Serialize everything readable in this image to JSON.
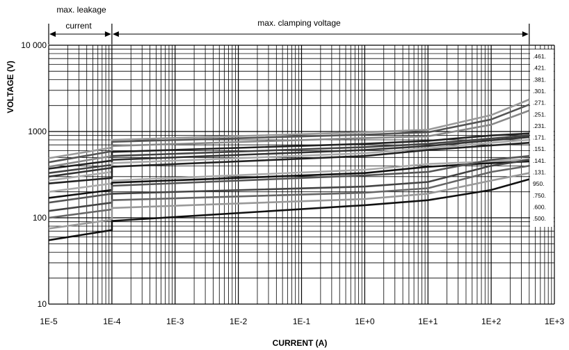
{
  "chart_data": {
    "type": "line",
    "title": "",
    "xlabel": "CURRENT (A)",
    "ylabel": "VOLTAGE (V)",
    "x_scale": "log",
    "y_scale": "log",
    "xlim": [
      1e-05,
      1000
    ],
    "ylim": [
      10,
      10000
    ],
    "grid": true,
    "x_tick_labels": [
      "1E-5",
      "1E-4",
      "1E-3",
      "1E-2",
      "1E-1",
      "1E+0",
      "1E+1",
      "1E+2",
      "1E+3"
    ],
    "y_tick_labels": [
      "10",
      "100",
      "1000",
      "10 000"
    ],
    "annotations": {
      "leakage_line1": "max. leakage",
      "leakage_line2": "current",
      "clamping": "max. clamping voltage"
    },
    "legend_position": "right",
    "legend_labels": [
      ".461.",
      ".421.",
      ".381.",
      ".301.",
      ".271.",
      ".251.",
      ".231.",
      ".171.",
      ".151.",
      ".141.",
      ".131.",
      "950.",
      ".750.",
      ".600.",
      ".500."
    ],
    "series": [
      {
        "color": "#999999",
        "points": [
          [
            1e-05,
            490
          ],
          [
            0.0001,
            650
          ],
          [
            0.0001,
            800
          ],
          [
            1,
            980
          ],
          [
            10,
            1050
          ],
          [
            100,
            1550
          ],
          [
            400,
            2350
          ]
        ]
      },
      {
        "color": "#555555",
        "points": [
          [
            1e-05,
            440
          ],
          [
            0.0001,
            590
          ],
          [
            0.0001,
            760
          ],
          [
            1,
            920
          ],
          [
            10,
            980
          ],
          [
            100,
            1380
          ],
          [
            400,
            2050
          ]
        ]
      },
      {
        "color": "#888888",
        "points": [
          [
            1e-05,
            390
          ],
          [
            0.0001,
            520
          ],
          [
            0.0001,
            680
          ],
          [
            1,
            840
          ],
          [
            10,
            880
          ],
          [
            100,
            1200
          ],
          [
            400,
            1750
          ]
        ]
      },
      {
        "color": "#222222",
        "points": [
          [
            1e-05,
            370
          ],
          [
            0.0001,
            460
          ],
          [
            0.0001,
            580
          ],
          [
            1,
            720
          ],
          [
            10,
            780
          ],
          [
            100,
            900
          ],
          [
            400,
            950
          ]
        ]
      },
      {
        "color": "#444444",
        "points": [
          [
            1e-05,
            330
          ],
          [
            0.0001,
            410
          ],
          [
            0.0001,
            520
          ],
          [
            1,
            660
          ],
          [
            10,
            720
          ],
          [
            100,
            830
          ],
          [
            400,
            900
          ]
        ]
      },
      {
        "color": "#333333",
        "points": [
          [
            1e-05,
            300
          ],
          [
            0.0001,
            380
          ],
          [
            0.0001,
            470
          ],
          [
            1,
            610
          ],
          [
            10,
            680
          ],
          [
            100,
            790
          ],
          [
            400,
            860
          ]
        ]
      },
      {
        "color": "#aaaaaa",
        "points": [
          [
            1e-05,
            270
          ],
          [
            0.0001,
            340
          ],
          [
            0.0001,
            430
          ],
          [
            1,
            560
          ],
          [
            10,
            640
          ],
          [
            100,
            740
          ],
          [
            400,
            800
          ]
        ]
      },
      {
        "color": "#222222",
        "points": [
          [
            1e-05,
            250
          ],
          [
            0.0001,
            290
          ],
          [
            0.0001,
            390
          ],
          [
            1,
            520
          ],
          [
            10,
            610
          ],
          [
            100,
            690
          ],
          [
            400,
            740
          ]
        ]
      },
      {
        "color": "#aaaaaa",
        "points": [
          [
            1e-05,
            200
          ],
          [
            0.0001,
            250
          ],
          [
            0.0001,
            270
          ],
          [
            1,
            360
          ],
          [
            10,
            420
          ],
          [
            100,
            450
          ],
          [
            400,
            480
          ]
        ]
      },
      {
        "color": "#111111",
        "points": [
          [
            1e-05,
            170
          ],
          [
            0.0001,
            210
          ],
          [
            0.0001,
            255
          ],
          [
            1,
            330
          ],
          [
            10,
            390
          ],
          [
            100,
            430
          ],
          [
            400,
            450
          ]
        ]
      },
      {
        "color": "#555555",
        "points": [
          [
            1e-05,
            150
          ],
          [
            0.0001,
            190
          ],
          [
            0.0001,
            235
          ],
          [
            1,
            310
          ],
          [
            10,
            340
          ],
          [
            100,
            470
          ],
          [
            400,
            520
          ]
        ]
      },
      {
        "color": "#444444",
        "points": [
          [
            1e-05,
            120
          ],
          [
            0.0001,
            150
          ],
          [
            0.0001,
            190
          ],
          [
            1,
            230
          ],
          [
            10,
            260
          ],
          [
            100,
            400
          ],
          [
            400,
            470
          ]
        ]
      },
      {
        "color": "#666666",
        "points": [
          [
            1e-05,
            100
          ],
          [
            0.0001,
            125
          ],
          [
            0.0001,
            160
          ],
          [
            1,
            195
          ],
          [
            10,
            220
          ],
          [
            100,
            340
          ],
          [
            400,
            400
          ]
        ]
      },
      {
        "color": "#999999",
        "points": [
          [
            1e-05,
            75
          ],
          [
            0.0001,
            95
          ],
          [
            0.0001,
            130
          ],
          [
            1,
            165
          ],
          [
            10,
            190
          ],
          [
            100,
            270
          ],
          [
            400,
            330
          ]
        ]
      },
      {
        "color": "#111111",
        "points": [
          [
            1e-05,
            55
          ],
          [
            0.0001,
            72
          ],
          [
            0.0001,
            92
          ],
          [
            1,
            140
          ],
          [
            10,
            160
          ],
          [
            100,
            210
          ],
          [
            400,
            280
          ]
        ]
      }
    ]
  }
}
